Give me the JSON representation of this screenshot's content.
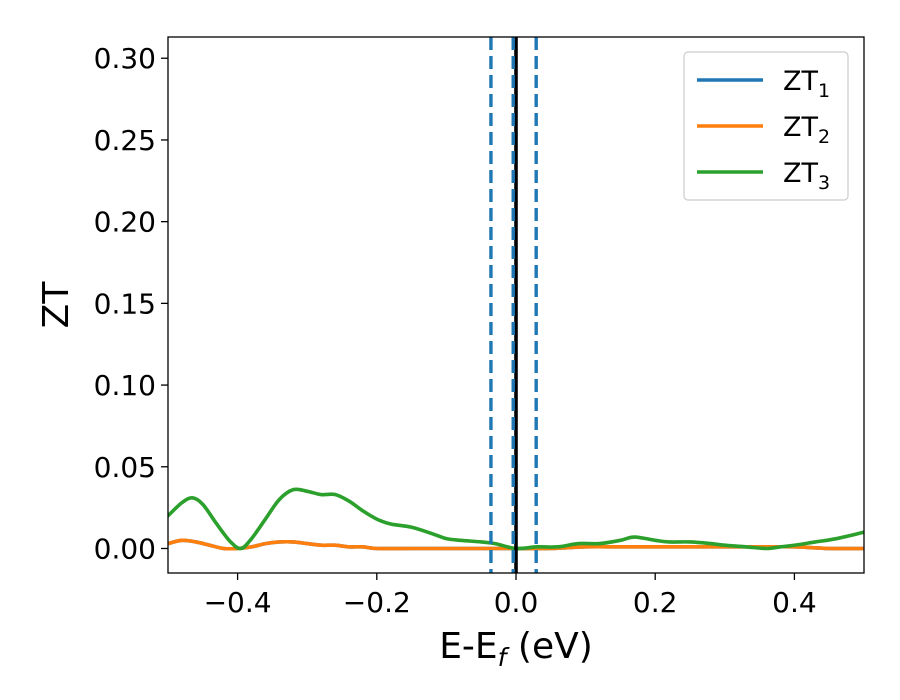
{
  "chart_data": {
    "type": "line",
    "xlabel": {
      "main": "E-E",
      "sub": "f",
      "unit": " (eV)"
    },
    "ylabel": "ZT",
    "xlim": [
      -0.5,
      0.5
    ],
    "ylim": [
      -0.015,
      0.313
    ],
    "xticks": [
      -0.4,
      -0.2,
      0.0,
      0.2,
      0.4
    ],
    "xtick_labels": [
      "−0.4",
      "−0.2",
      "0.0",
      "0.2",
      "0.4"
    ],
    "yticks": [
      0.0,
      0.05,
      0.1,
      0.15,
      0.2,
      0.25,
      0.3
    ],
    "ytick_labels": [
      "0.00",
      "0.05",
      "0.10",
      "0.15",
      "0.20",
      "0.25",
      "0.30"
    ],
    "legend_position": "top-right",
    "series": [
      {
        "name": "ZT",
        "name_sub": "1",
        "color": "#1f77b4",
        "x": [
          -0.5,
          -0.48,
          -0.46,
          -0.44,
          -0.42,
          -0.4,
          -0.38,
          -0.36,
          -0.34,
          -0.32,
          -0.3,
          -0.28,
          -0.26,
          -0.24,
          -0.22,
          -0.2,
          -0.15,
          -0.1,
          -0.05,
          0.0,
          0.05,
          0.1,
          0.15,
          0.2,
          0.25,
          0.3,
          0.35,
          0.4,
          0.45,
          0.5
        ],
        "y": [
          0.003,
          0.005,
          0.004,
          0.002,
          0.0,
          0.0,
          0.001,
          0.003,
          0.004,
          0.004,
          0.003,
          0.002,
          0.002,
          0.001,
          0.001,
          0.0,
          0.0,
          0.0,
          0.0,
          0.0,
          0.0,
          0.001,
          0.001,
          0.001,
          0.001,
          0.001,
          0.001,
          0.001,
          0.0,
          0.0
        ]
      },
      {
        "name": "ZT",
        "name_sub": "2",
        "color": "#ff7f0e",
        "x": [
          -0.5,
          -0.48,
          -0.46,
          -0.44,
          -0.42,
          -0.4,
          -0.38,
          -0.36,
          -0.34,
          -0.32,
          -0.3,
          -0.28,
          -0.26,
          -0.24,
          -0.22,
          -0.2,
          -0.15,
          -0.1,
          -0.05,
          0.0,
          0.05,
          0.1,
          0.15,
          0.2,
          0.25,
          0.3,
          0.35,
          0.4,
          0.45,
          0.5
        ],
        "y": [
          0.003,
          0.005,
          0.004,
          0.002,
          0.0,
          0.0,
          0.001,
          0.003,
          0.004,
          0.004,
          0.003,
          0.002,
          0.002,
          0.001,
          0.001,
          0.0,
          0.0,
          0.0,
          0.0,
          0.0,
          0.0,
          0.001,
          0.001,
          0.001,
          0.001,
          0.001,
          0.001,
          0.001,
          0.0,
          0.0
        ]
      },
      {
        "name": "ZT",
        "name_sub": "3",
        "color": "#2ca02c",
        "x": [
          -0.5,
          -0.48,
          -0.465,
          -0.45,
          -0.43,
          -0.41,
          -0.395,
          -0.38,
          -0.36,
          -0.34,
          -0.32,
          -0.3,
          -0.28,
          -0.26,
          -0.24,
          -0.22,
          -0.2,
          -0.18,
          -0.15,
          -0.12,
          -0.1,
          -0.08,
          -0.05,
          -0.03,
          0.0,
          0.03,
          0.06,
          0.09,
          0.12,
          0.15,
          0.17,
          0.2,
          0.22,
          0.25,
          0.28,
          0.3,
          0.33,
          0.36,
          0.38,
          0.4,
          0.43,
          0.46,
          0.5
        ],
        "y": [
          0.02,
          0.028,
          0.031,
          0.027,
          0.015,
          0.004,
          0.0,
          0.006,
          0.018,
          0.03,
          0.036,
          0.035,
          0.033,
          0.033,
          0.029,
          0.023,
          0.018,
          0.015,
          0.013,
          0.009,
          0.006,
          0.005,
          0.004,
          0.003,
          0.0,
          0.001,
          0.001,
          0.003,
          0.003,
          0.005,
          0.007,
          0.005,
          0.004,
          0.004,
          0.003,
          0.002,
          0.001,
          0.0,
          0.001,
          0.002,
          0.004,
          0.006,
          0.01
        ]
      }
    ],
    "vlines": [
      {
        "x": 0.0,
        "style": "solid",
        "color": "#000000"
      },
      {
        "x": -0.036,
        "style": "dashed",
        "color": "#1f77b4"
      },
      {
        "x": -0.004,
        "style": "dashed",
        "color": "#1f77b4"
      },
      {
        "x": 0.029,
        "style": "dashed",
        "color": "#1f77b4"
      }
    ]
  }
}
